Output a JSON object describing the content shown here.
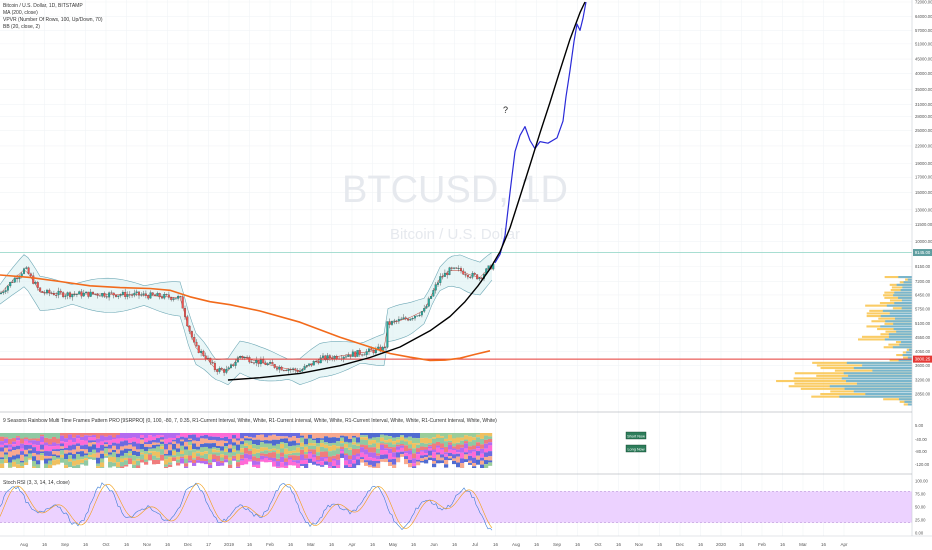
{
  "header": {
    "lines": [
      "Bitcoin / U.S. Dollar, 1D, BITSTAMP",
      "MA (200, close)",
      "VPVR (Number Of Rows, 100, Up/Down, 70)",
      "BB (20, close, 2)"
    ]
  },
  "watermark": {
    "symbol": "BTCUSD, 1D",
    "name": "Bitcoin / U.S. Dollar"
  },
  "annotation": "?",
  "indicator_title": "9 Seasons Rainbow Multi Time Frames Pattern PRO [9SRPRO] (0, 100, -80, 7, 0.35, R1-Current Interval, White, White, R1-Current Interval, White, White, R1-Current Interval, White, White, R1-Current Interval, White, White)",
  "stoch_title": "Stoch RSI (3, 3, 14, 14, close)",
  "badges": {
    "short": "Short Now",
    "long": "Long Now"
  },
  "price_labels": {
    "current": "9145.00",
    "support": "3800.25"
  },
  "colors": {
    "candle_up": "#26a69a",
    "candle_down": "#ef5350",
    "ma200": "#f26a1b",
    "bb_band": "#6fa9b6",
    "bb_basis": "#c0392b",
    "projection": "#2a2ad8",
    "curve": "#000000",
    "support_line": "#e53935",
    "resistance_line": "#8fd4c4",
    "stoch_fill": "#ecd2ff",
    "vp_up": "#5ab0e6",
    "vp_down": "#f9c34a"
  },
  "chart_data": [
    {
      "type": "line",
      "title": "Bitcoin / U.S. Dollar, 1D, BITSTAMP",
      "y_scale": "log",
      "price_ticks": [
        "72000.00",
        "64000.00",
        "57000.00",
        "51000.00",
        "45000.00",
        "40000.00",
        "35000.00",
        "31000.00",
        "28000.00",
        "25000.00",
        "22000.00",
        "19000.00",
        "17000.00",
        "15000.00",
        "13000.00",
        "11500.00",
        "10000.00",
        "9150.00",
        "8150.00",
        "7200.00",
        "6450.00",
        "5750.00",
        "5100.00",
        "4550.00",
        "4050.00",
        "3600.00",
        "3200.00",
        "2850.00"
      ],
      "time_ticks": [
        "Aug",
        "16",
        "Sep",
        "16",
        "Oct",
        "16",
        "Nov",
        "16",
        "Dec",
        "17",
        "2019",
        "16",
        "Feb",
        "16",
        "Mar",
        "16",
        "Apr",
        "16",
        "May",
        "16",
        "Jun",
        "16",
        "Jul",
        "16",
        "Aug",
        "16",
        "Sep",
        "16",
        "Oct",
        "16",
        "Nov",
        "16",
        "Dec",
        "16",
        "2020",
        "16",
        "Feb",
        "16",
        "Mar",
        "16",
        "Apr"
      ],
      "series": [
        {
          "name": "MA (200, close)",
          "points": [
            [
              0,
              7600
            ],
            [
              30,
              7450
            ],
            [
              60,
              7200
            ],
            [
              90,
              6950
            ],
            [
              120,
              6850
            ],
            [
              150,
              6800
            ],
            [
              170,
              6700
            ],
            [
              190,
              6350
            ],
            [
              210,
              6100
            ],
            [
              230,
              5950
            ],
            [
              260,
              5650
            ],
            [
              300,
              5150
            ],
            [
              340,
              4550
            ],
            [
              370,
              4200
            ],
            [
              390,
              3980
            ],
            [
              410,
              3860
            ],
            [
              430,
              3760
            ],
            [
              445,
              3770
            ],
            [
              460,
              3830
            ],
            [
              475,
              3950
            ],
            [
              490,
              4070
            ]
          ]
        },
        {
          "name": "Projection",
          "points": [
            [
              495,
              8400
            ],
            [
              500,
              9000
            ],
            [
              505,
              10500
            ],
            [
              510,
              15000
            ],
            [
              515,
              21000
            ],
            [
              520,
              24000
            ],
            [
              525,
              25800
            ],
            [
              530,
              23000
            ],
            [
              535,
              21500
            ],
            [
              540,
              22800
            ],
            [
              548,
              22500
            ],
            [
              557,
              23500
            ],
            [
              563,
              27000
            ],
            [
              566,
              33000
            ],
            [
              570,
              41000
            ],
            [
              574,
              52000
            ],
            [
              577,
              60000
            ],
            [
              580,
              57000
            ],
            [
              583,
              63000
            ],
            [
              586,
              72000
            ]
          ]
        },
        {
          "name": "Curve",
          "points": [
            [
              228,
              3200
            ],
            [
              260,
              3260
            ],
            [
              300,
              3380
            ],
            [
              340,
              3600
            ],
            [
              370,
              3850
            ],
            [
              400,
              4200
            ],
            [
              430,
              4800
            ],
            [
              450,
              5400
            ],
            [
              465,
              6100
            ],
            [
              478,
              6950
            ],
            [
              490,
              8000
            ],
            [
              500,
              9200
            ],
            [
              510,
              11200
            ],
            [
              520,
              14500
            ],
            [
              530,
              18800
            ],
            [
              540,
              24500
            ],
            [
              550,
              31500
            ],
            [
              560,
              41000
            ],
            [
              570,
              53000
            ],
            [
              580,
              66000
            ],
            [
              585,
              72000
            ]
          ]
        }
      ]
    },
    {
      "type": "line",
      "title": "Stoch RSI (3, 3, 14, 14, close)",
      "y_ticks": [
        "100.00",
        "75.00",
        "50.00",
        "25.00",
        "0.00"
      ],
      "ylim": [
        0,
        100
      ],
      "bands": [
        20,
        80
      ]
    }
  ]
}
